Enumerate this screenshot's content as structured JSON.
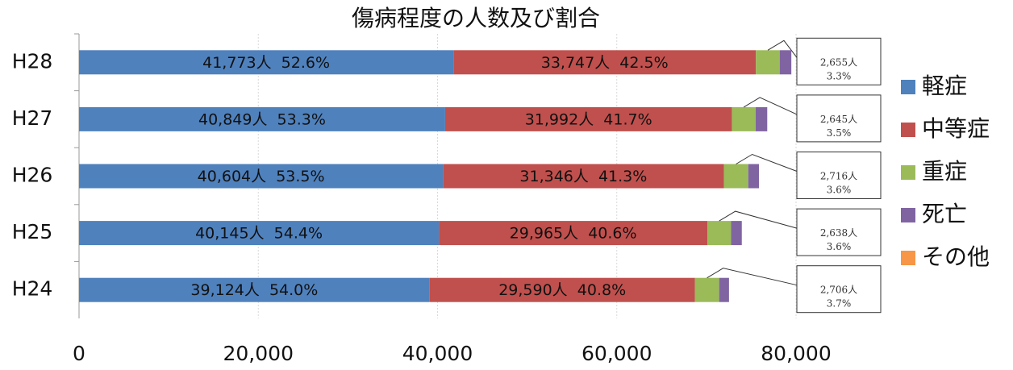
{
  "chart_data": {
    "type": "stacked-barh",
    "title": "傷病程度の人数及び割合",
    "categories": [
      "H28",
      "H27",
      "H26",
      "H25",
      "H24"
    ],
    "series": [
      {
        "name": "軽症",
        "color": "#4f81bd",
        "values": [
          41773,
          40849,
          40604,
          40145,
          39124
        ],
        "value_labels": [
          "41,773人  52.6%",
          "40,849人  53.3%",
          "40,604人  53.5%",
          "40,145人  54.4%",
          "39,124人  54.0%"
        ]
      },
      {
        "name": "中等症",
        "color": "#c0504d",
        "values": [
          33747,
          31992,
          31346,
          29965,
          29590
        ],
        "value_labels": [
          "33,747人  42.5%",
          "31,992人  41.7%",
          "31,346人  41.3%",
          "29,965人  40.6%",
          "29,590人  40.8%"
        ]
      },
      {
        "name": "重症",
        "color": "#9bbb59",
        "values": [
          2655,
          2645,
          2716,
          2638,
          2706
        ],
        "value_labels": [
          [
            "2,655人",
            "3.3%"
          ],
          [
            "2,645人",
            "3.5%"
          ],
          [
            "2,716人",
            "3.6%"
          ],
          [
            "2,638人",
            "3.6%"
          ],
          [
            "2,706人",
            "3.7%"
          ]
        ]
      },
      {
        "name": "死亡",
        "color": "#8064a2",
        "values": [
          1300,
          1300,
          1200,
          1200,
          1100
        ]
      },
      {
        "name": "その他",
        "color": "#f79646",
        "values": [
          0,
          0,
          0,
          0,
          0
        ]
      }
    ],
    "xlim": [
      0,
      80000
    ],
    "xticks": [
      0,
      {
        "value": 20000,
        "label": "20,000"
      },
      {
        "value": 40000,
        "label": "40,000"
      },
      {
        "value": 60000,
        "label": "60,000"
      },
      {
        "value": 80000,
        "label": "80,000"
      }
    ],
    "grid": true,
    "legend": "right"
  }
}
